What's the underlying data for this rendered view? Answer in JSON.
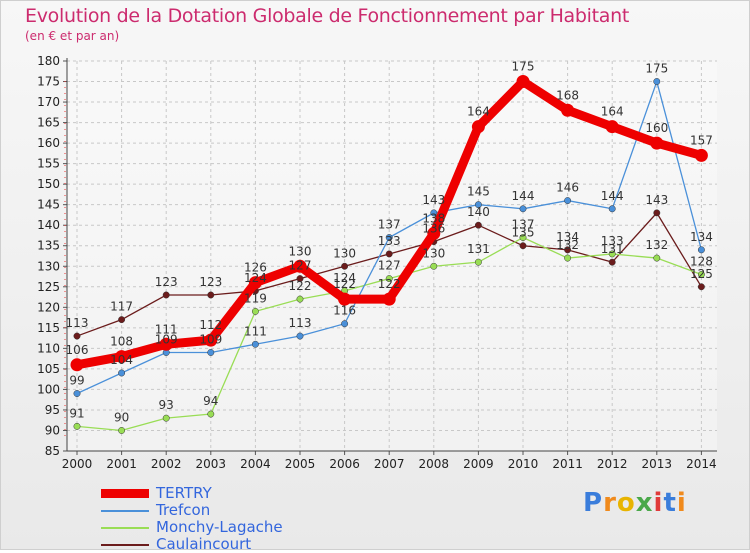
{
  "title": "Evolution de la Dotation Globale de Fonctionnement par Habitant",
  "subtitle": "(en € et par an)",
  "brand": "Proxiti",
  "chart_data": {
    "type": "line",
    "title": "Evolution de la Dotation Globale de Fonctionnement par Habitant",
    "subtitle": "(en € et par an)",
    "x": [
      2000,
      2001,
      2002,
      2003,
      2004,
      2005,
      2006,
      2007,
      2008,
      2009,
      2010,
      2011,
      2012,
      2013,
      2014
    ],
    "ylim": [
      85,
      180
    ],
    "yticks": [
      85,
      90,
      95,
      100,
      105,
      110,
      115,
      120,
      125,
      130,
      135,
      140,
      145,
      150,
      155,
      160,
      165,
      170,
      175,
      180
    ],
    "grid": true,
    "legend_position": "bottom-left",
    "series": [
      {
        "name": "Caulaincourt",
        "color": "#6b1c1c",
        "values": [
          113,
          117,
          123,
          123,
          124,
          127,
          130,
          133,
          136,
          140,
          135,
          134,
          131,
          143,
          125
        ],
        "show_labels": true
      },
      {
        "name": "Monchy-Lagache",
        "color": "#99dd55",
        "values": [
          91,
          90,
          93,
          94,
          119,
          122,
          124,
          127,
          130,
          131,
          137,
          132,
          133,
          132,
          128
        ],
        "show_labels": true
      },
      {
        "name": "Trefcon",
        "color": "#4a90d9",
        "values": [
          99,
          104,
          109,
          109,
          111,
          113,
          116,
          137,
          143,
          145,
          144,
          146,
          144,
          175,
          134
        ],
        "show_labels": true
      },
      {
        "name": "TERTRY",
        "color": "#ee0000",
        "values": [
          106,
          108,
          111,
          112,
          126,
          130,
          122,
          122,
          138,
          164,
          175,
          168,
          164,
          160,
          157
        ],
        "show_labels": true
      }
    ]
  }
}
